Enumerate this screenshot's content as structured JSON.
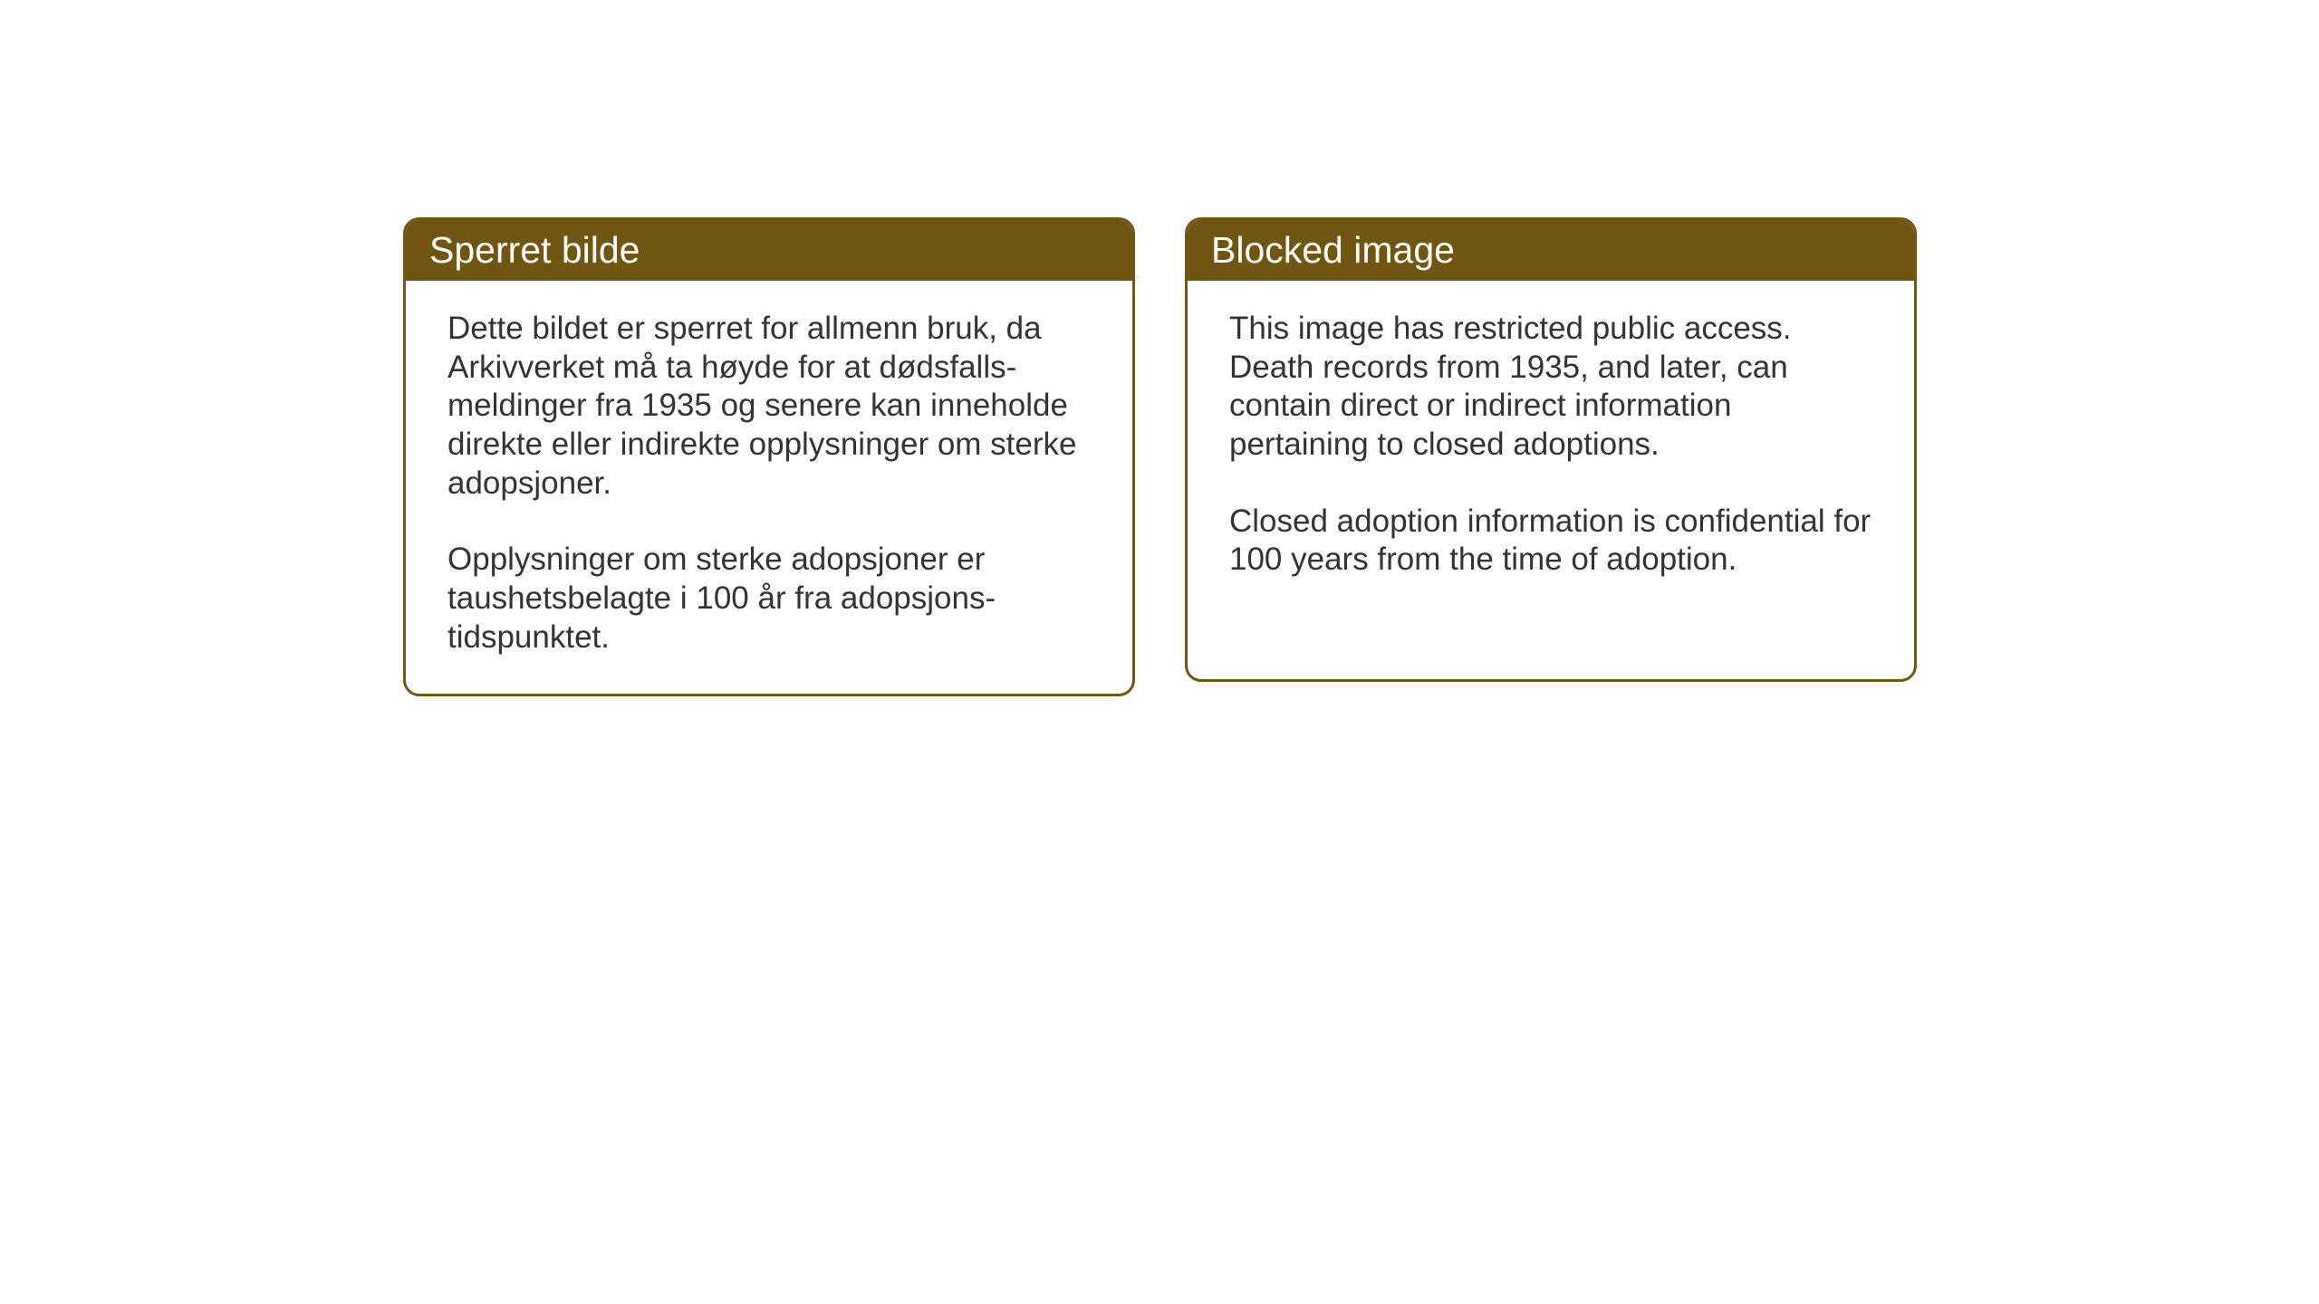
{
  "cards": {
    "norwegian": {
      "title": "Sperret bilde",
      "paragraph1": "Dette bildet er sperret for allmenn bruk, da Arkivverket må ta høyde for at dødsfalls-meldinger fra 1935 og senere kan inneholde direkte eller indirekte opplysninger om sterke adopsjoner.",
      "paragraph2": "Opplysninger om sterke adopsjoner er taushetsbelagte i 100 år fra adopsjons-tidspunktet."
    },
    "english": {
      "title": "Blocked image",
      "paragraph1": "This image has restricted public access. Death records from 1935, and later, can contain direct or indirect information pertaining to closed adoptions.",
      "paragraph2": "Closed adoption information is confidential for 100 years from the time of adoption."
    }
  },
  "styling": {
    "header_bg_color": "#705513",
    "header_text_color": "#ffffff",
    "border_color": "#705513",
    "body_bg_color": "#ffffff",
    "body_text_color": "#333333",
    "header_fontsize": 41,
    "body_fontsize": 35,
    "border_radius": 18,
    "border_width": 3
  }
}
